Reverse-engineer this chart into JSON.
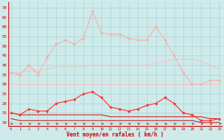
{
  "x": [
    0,
    1,
    2,
    3,
    4,
    5,
    6,
    7,
    8,
    9,
    10,
    11,
    12,
    13,
    14,
    15,
    16,
    17,
    18,
    19,
    20,
    21,
    22,
    23
  ],
  "series": [
    {
      "name": "rafales_max",
      "color": "#ffaaaa",
      "linewidth": 0.8,
      "marker": "D",
      "markersize": 2.0,
      "values": [
        36,
        35,
        40,
        35,
        44,
        51,
        53,
        51,
        54,
        68,
        57,
        56,
        56,
        54,
        53,
        53,
        60,
        53,
        45,
        36,
        30,
        30,
        32,
        32
      ]
    },
    {
      "name": "rafales_band_high",
      "color": "#ffbbbb",
      "linewidth": 0.7,
      "marker": null,
      "values": [
        36,
        36,
        37,
        37,
        38,
        39,
        39,
        39,
        39,
        40,
        40,
        40,
        40,
        40,
        40,
        40,
        41,
        42,
        43,
        43,
        43,
        42,
        40,
        38
      ]
    },
    {
      "name": "rafales_band_low",
      "color": "#ffbbbb",
      "linewidth": 0.7,
      "marker": null,
      "values": [
        30,
        30,
        30,
        30,
        30,
        30,
        30,
        30,
        30,
        30,
        30,
        30,
        30,
        30,
        30,
        30,
        30,
        30,
        30,
        30,
        30,
        30,
        30,
        30
      ]
    },
    {
      "name": "vent_max",
      "color": "#ff3333",
      "linewidth": 0.9,
      "marker": "D",
      "markersize": 2.0,
      "values": [
        15,
        14,
        17,
        16,
        16,
        20,
        21,
        22,
        25,
        26,
        23,
        18,
        17,
        16,
        17,
        19,
        20,
        23,
        20,
        15,
        14,
        11,
        11,
        12
      ]
    },
    {
      "name": "vent_band_high",
      "color": "#cc0000",
      "linewidth": 0.7,
      "marker": null,
      "values": [
        15,
        14,
        14,
        14,
        14,
        14,
        14,
        14,
        14,
        14,
        14,
        13,
        13,
        13,
        13,
        13,
        13,
        13,
        13,
        13,
        13,
        13,
        12,
        12
      ]
    },
    {
      "name": "vent_band_low",
      "color": "#cc0000",
      "linewidth": 0.7,
      "marker": null,
      "values": [
        12,
        11,
        11,
        11,
        11,
        11,
        11,
        11,
        11,
        11,
        11,
        11,
        11,
        11,
        11,
        11,
        11,
        11,
        11,
        11,
        11,
        10,
        10,
        10
      ]
    }
  ],
  "yticks": [
    10,
    15,
    20,
    25,
    30,
    35,
    40,
    45,
    50,
    55,
    60,
    65,
    70
  ],
  "ylim": [
    8,
    73
  ],
  "xlim": [
    -0.3,
    23.3
  ],
  "xlabel": "Vent moyen/en rafales ( km/h )",
  "bg_color": "#ceeaea",
  "grid_color": "#aad4d4",
  "tick_color": "#cc0000",
  "label_color": "#cc0000",
  "arrow_color": "#cc0000",
  "spine_color": "#cc0000"
}
